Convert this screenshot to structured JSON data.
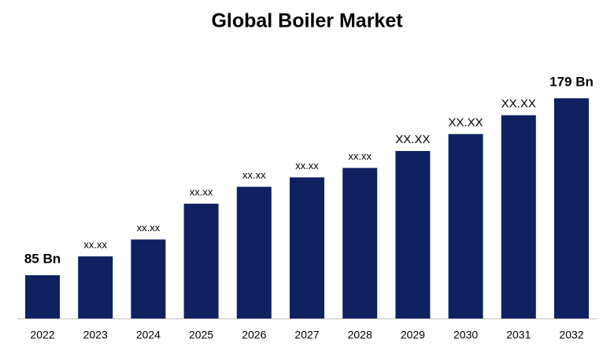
{
  "chart_data": {
    "type": "bar",
    "title": "Global Boiler Market",
    "categories": [
      "2022",
      "2023",
      "2024",
      "2025",
      "2026",
      "2027",
      "2028",
      "2029",
      "2030",
      "2031",
      "2032"
    ],
    "values": [
      85,
      95,
      104,
      123,
      132,
      137,
      142,
      151,
      160,
      170,
      179
    ],
    "value_labels": [
      "85 Bn",
      "xx.xx",
      "xx.xx",
      "xx.xx",
      "xx.xx",
      "xx.xx",
      "xx.xx",
      "XX.XX",
      "XX.XX",
      "XX.XX",
      "179 Bn"
    ],
    "color": "#0f2161"
  }
}
